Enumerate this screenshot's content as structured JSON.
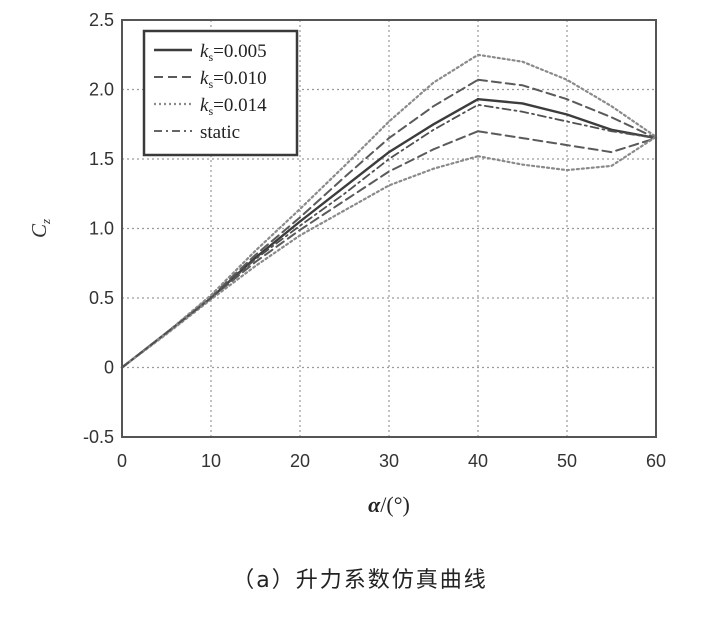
{
  "chart_data": {
    "type": "line",
    "xlabel": "α/(°)",
    "ylabel": "Cz",
    "xlim": [
      0,
      60
    ],
    "ylim": [
      -0.5,
      2.5
    ],
    "xticks": [
      0,
      10,
      20,
      30,
      40,
      50,
      60
    ],
    "yticks": [
      -0.5,
      0,
      0.5,
      1.0,
      1.5,
      2.0,
      2.5
    ],
    "ytick_labels": [
      "-0.5",
      "0",
      "0.5",
      "1.0",
      "1.5",
      "2.0",
      "2.5"
    ],
    "grid": true,
    "legend_position": "top-left",
    "series": [
      {
        "name": "ks=0.005",
        "legend_k": "k",
        "legend_sub": "s",
        "legend_rest": "=0.005",
        "style": "solid",
        "color": "#3c3c3c",
        "branches": [
          {
            "x": [
              0,
              5,
              10,
              15,
              20,
              25,
              30,
              35,
              40
            ],
            "y": [
              0,
              0.25,
              0.5,
              0.79,
              1.05,
              1.3,
              1.55,
              1.75,
              1.93
            ]
          },
          {
            "x": [
              40,
              45,
              50,
              55,
              60
            ],
            "y": [
              1.93,
              1.9,
              1.82,
              1.71,
              1.65
            ]
          }
        ]
      },
      {
        "name": "ks=0.010",
        "legend_k": "k",
        "legend_sub": "s",
        "legend_rest": "=0.010",
        "style": "dashed",
        "color": "#5a5a5a",
        "branches": [
          {
            "x": [
              0,
              5,
              10,
              15,
              20,
              25,
              30,
              35,
              40
            ],
            "y": [
              0,
              0.25,
              0.51,
              0.81,
              1.08,
              1.37,
              1.65,
              1.88,
              2.07
            ]
          },
          {
            "x": [
              40,
              45,
              50,
              55,
              60
            ],
            "y": [
              2.07,
              2.03,
              1.93,
              1.8,
              1.65
            ]
          },
          {
            "x": [
              0,
              5,
              10,
              15,
              20,
              25,
              30,
              35,
              40
            ],
            "y": [
              0,
              0.25,
              0.5,
              0.76,
              0.99,
              1.2,
              1.41,
              1.57,
              1.7
            ]
          },
          {
            "x": [
              40,
              45,
              50,
              55,
              60
            ],
            "y": [
              1.7,
              1.65,
              1.6,
              1.55,
              1.65
            ]
          }
        ]
      },
      {
        "name": "ks=0.014",
        "legend_k": "k",
        "legend_sub": "s",
        "legend_rest": "=0.014",
        "style": "dotted",
        "color": "#8a8a8a",
        "branches": [
          {
            "x": [
              0,
              5,
              10,
              15,
              20,
              25,
              30,
              35,
              40
            ],
            "y": [
              0,
              0.25,
              0.52,
              0.84,
              1.14,
              1.45,
              1.77,
              2.05,
              2.25
            ]
          },
          {
            "x": [
              40,
              45,
              50,
              55,
              60
            ],
            "y": [
              2.25,
              2.2,
              2.07,
              1.88,
              1.66
            ]
          },
          {
            "x": [
              0,
              5,
              10,
              15,
              20,
              25,
              30,
              35,
              40
            ],
            "y": [
              0,
              0.24,
              0.49,
              0.73,
              0.95,
              1.13,
              1.31,
              1.43,
              1.52
            ]
          },
          {
            "x": [
              40,
              45,
              50,
              55,
              60
            ],
            "y": [
              1.52,
              1.46,
              1.42,
              1.45,
              1.66
            ]
          }
        ]
      },
      {
        "name": "static",
        "legend_label": "static",
        "style": "dashdot",
        "color": "#505050",
        "branches": [
          {
            "x": [
              0,
              5,
              10,
              15,
              20,
              25,
              30,
              35,
              40,
              45,
              50,
              55,
              60
            ],
            "y": [
              0,
              0.25,
              0.5,
              0.78,
              1.02,
              1.25,
              1.5,
              1.71,
              1.89,
              1.84,
              1.77,
              1.7,
              1.65
            ]
          }
        ]
      }
    ]
  },
  "caption": "（a）升力系数仿真曲线"
}
